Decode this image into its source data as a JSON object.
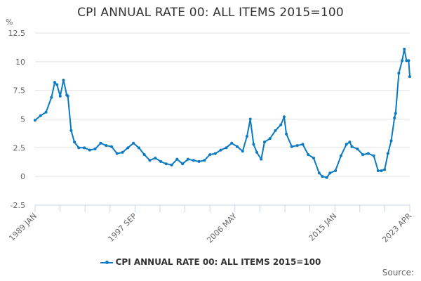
{
  "chart_data": {
    "type": "line",
    "title": "CPI ANNUAL RATE 00: ALL ITEMS 2015=100",
    "ylabel": "%",
    "xlabel": "",
    "ylim": [
      -2.5,
      12.5
    ],
    "yticks": [
      "-2.5",
      "0",
      "2.5",
      "5",
      "7.5",
      "10",
      "12.5"
    ],
    "xtick_labels": [
      "1989 JAN",
      "1997 SEP",
      "2006 MAY",
      "2015 JAN",
      "2023 APR"
    ],
    "x_range": [
      "1989 JAN",
      "2023 APR"
    ],
    "grid": true,
    "legend_position": "bottom",
    "series": [
      {
        "name": "CPI ANNUAL RATE 00: ALL ITEMS 2015=100",
        "color": "#0a7ac2",
        "x": [
          1989.0,
          1989.5,
          1990.0,
          1990.5,
          1990.8,
          1991.0,
          1991.3,
          1991.6,
          1991.9,
          1992.0,
          1992.3,
          1992.6,
          1993.0,
          1993.5,
          1994.0,
          1994.5,
          1995.0,
          1995.5,
          1996.0,
          1996.5,
          1997.0,
          1997.5,
          1998.0,
          1998.5,
          1999.0,
          1999.5,
          2000.0,
          2000.5,
          2001.0,
          2001.5,
          2002.0,
          2002.5,
          2003.0,
          2003.5,
          2004.0,
          2004.5,
          2005.0,
          2005.5,
          2006.0,
          2006.5,
          2007.0,
          2007.5,
          2008.0,
          2008.4,
          2008.7,
          2009.0,
          2009.3,
          2009.7,
          2010.0,
          2010.5,
          2011.0,
          2011.5,
          2011.8,
          2012.0,
          2012.5,
          2013.0,
          2013.5,
          2014.0,
          2014.5,
          2015.0,
          2015.3,
          2015.7,
          2016.0,
          2016.5,
          2017.0,
          2017.5,
          2017.8,
          2018.0,
          2018.5,
          2019.0,
          2019.5,
          2020.0,
          2020.4,
          2020.7,
          2021.0,
          2021.3,
          2021.6,
          2021.9,
          2022.0,
          2022.3,
          2022.6,
          2022.8,
          2023.0,
          2023.2,
          2023.3
        ],
        "values": [
          4.9,
          5.3,
          5.6,
          6.9,
          8.2,
          8.0,
          7.0,
          8.4,
          7.1,
          7.0,
          4.0,
          3.0,
          2.5,
          2.5,
          2.3,
          2.4,
          2.9,
          2.7,
          2.6,
          2.0,
          2.1,
          2.5,
          2.9,
          2.5,
          1.9,
          1.4,
          1.6,
          1.3,
          1.1,
          1.0,
          1.5,
          1.1,
          1.5,
          1.4,
          1.3,
          1.4,
          1.9,
          2.0,
          2.3,
          2.5,
          2.9,
          2.6,
          2.2,
          3.5,
          5.0,
          2.8,
          2.1,
          1.5,
          3.0,
          3.3,
          4.0,
          4.5,
          5.2,
          3.7,
          2.6,
          2.7,
          2.8,
          1.9,
          1.6,
          0.3,
          0.0,
          -0.1,
          0.3,
          0.5,
          1.8,
          2.8,
          3.0,
          2.6,
          2.4,
          1.9,
          2.0,
          1.8,
          0.5,
          0.5,
          0.6,
          2.0,
          3.1,
          5.1,
          5.5,
          9.0,
          10.1,
          11.1,
          10.1,
          10.1,
          8.7
        ]
      }
    ]
  },
  "legend": {
    "label": "CPI ANNUAL RATE 00: ALL ITEMS 2015=100"
  },
  "source": {
    "label": "Source:"
  }
}
